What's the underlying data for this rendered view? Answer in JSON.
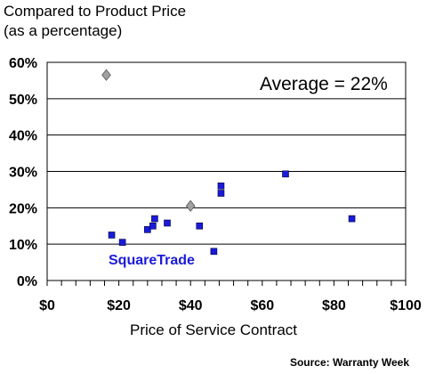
{
  "chart_data": {
    "type": "scatter",
    "ylabel_lines": [
      "Compared to Product Price",
      "(as a percentage)"
    ],
    "xlabel": "Price of Service Contract",
    "source": "Source: Warranty Week",
    "annotation": "Average = 22%",
    "brand_label": "SquareTrade",
    "xlim": [
      0,
      100
    ],
    "ylim": [
      0,
      0.6
    ],
    "x_ticks": [
      0,
      20,
      40,
      60,
      80,
      100
    ],
    "x_tick_labels": [
      "$0",
      "$20",
      "$40",
      "$60",
      "$80",
      "$100"
    ],
    "y_ticks": [
      0,
      0.1,
      0.2,
      0.3,
      0.4,
      0.5,
      0.6
    ],
    "y_tick_labels": [
      "0%",
      "10%",
      "20%",
      "30%",
      "40%",
      "50%",
      "60%"
    ],
    "grid": "horizontal",
    "colors": {
      "squares": "#1a1adb",
      "diamonds": "#a0a0a0",
      "brand": "#1a1adb"
    },
    "squares": [
      {
        "x": 18,
        "y": 0.125
      },
      {
        "x": 21,
        "y": 0.105
      },
      {
        "x": 28,
        "y": 0.14
      },
      {
        "x": 29.5,
        "y": 0.15
      },
      {
        "x": 30,
        "y": 0.17
      },
      {
        "x": 33.5,
        "y": 0.158
      },
      {
        "x": 42.5,
        "y": 0.15
      },
      {
        "x": 46.5,
        "y": 0.08
      },
      {
        "x": 48.5,
        "y": 0.24
      },
      {
        "x": 48.5,
        "y": 0.26
      },
      {
        "x": 66.5,
        "y": 0.293
      },
      {
        "x": 85,
        "y": 0.17
      }
    ],
    "diamonds": [
      {
        "x": 16.5,
        "y": 0.565
      },
      {
        "x": 40,
        "y": 0.205
      }
    ]
  }
}
